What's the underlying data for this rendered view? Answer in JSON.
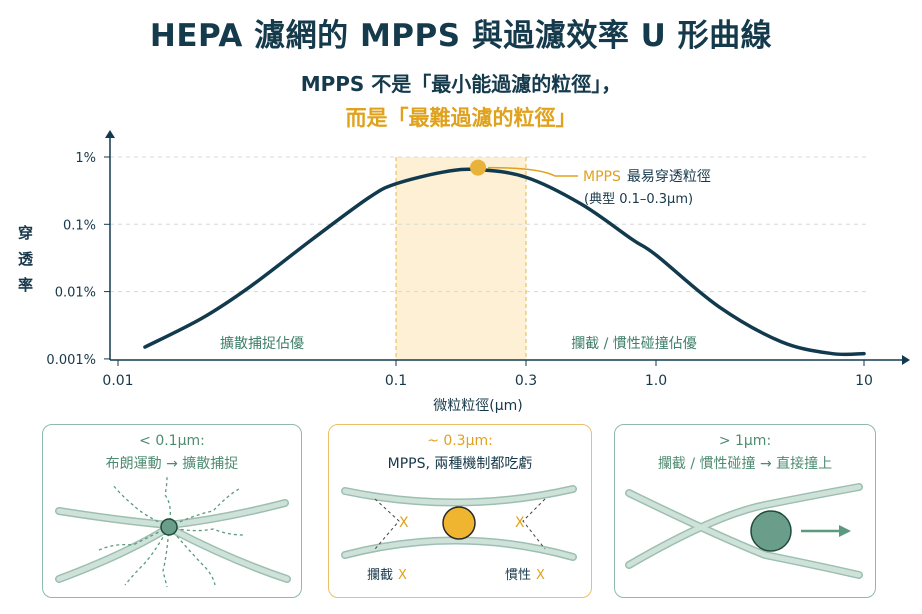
{
  "title": "HEPA 濾網的 MPPS 與過濾效率 U 形曲線",
  "subtitle_line1": "MPPS 不是「最小能過濾的粒徑」，",
  "subtitle_line2": "而是「最難過濾的粒徑」",
  "colors": {
    "curve": "#123a4e",
    "accent": "#e0a21c",
    "green": "#4e8c72",
    "band": "#fdf0d4",
    "fiber": "#c9ddd5"
  },
  "chart_data": {
    "type": "line",
    "xlabel": "微粒粒徑(μm)",
    "ylabel": "穿透率",
    "x_scale": "log",
    "y_scale": "log",
    "x_ticks": [
      "0.01",
      "0.1",
      "0.3",
      "1.0",
      "10"
    ],
    "y_ticks": [
      "1%",
      "0.1%",
      "0.01%",
      "0.001%"
    ],
    "xlim": [
      0.01,
      10
    ],
    "ylim_percent": [
      0.001,
      1
    ],
    "grid": "horizontal dashed",
    "highlight_band": [
      0.1,
      0.3
    ],
    "x": [
      0.0125,
      0.02,
      0.03,
      0.05,
      0.08,
      0.1,
      0.15,
      0.2,
      0.3,
      0.5,
      0.8,
      1.0,
      2,
      4,
      7,
      10
    ],
    "y_percent": [
      0.0015,
      0.004,
      0.012,
      0.06,
      0.25,
      0.4,
      0.6,
      0.65,
      0.5,
      0.2,
      0.06,
      0.035,
      0.006,
      0.0018,
      0.0012,
      0.0012
    ],
    "mpps_point": {
      "x": 0.2,
      "y_percent": 0.65
    },
    "annotations": {
      "mpps_label": "MPPS",
      "mpps_desc": "最易穿透粒徑",
      "mpps_range": "(典型 0.1–0.3μm)",
      "left_region": "擴散捕捉佔優",
      "right_region": "攔截 / 慣性碰撞佔優"
    }
  },
  "panels": [
    {
      "heading": "< 0.1μm:",
      "text": "布朗運動 → 擴散捕捉"
    },
    {
      "heading": "~ 0.3μm:",
      "text": "MPPS, 兩種機制都吃虧",
      "label_left": "攔截",
      "label_right": "慣性",
      "mark": "X"
    },
    {
      "heading": "> 1μm:",
      "text": "攔截 / 慣性碰撞 → 直接撞上"
    }
  ]
}
